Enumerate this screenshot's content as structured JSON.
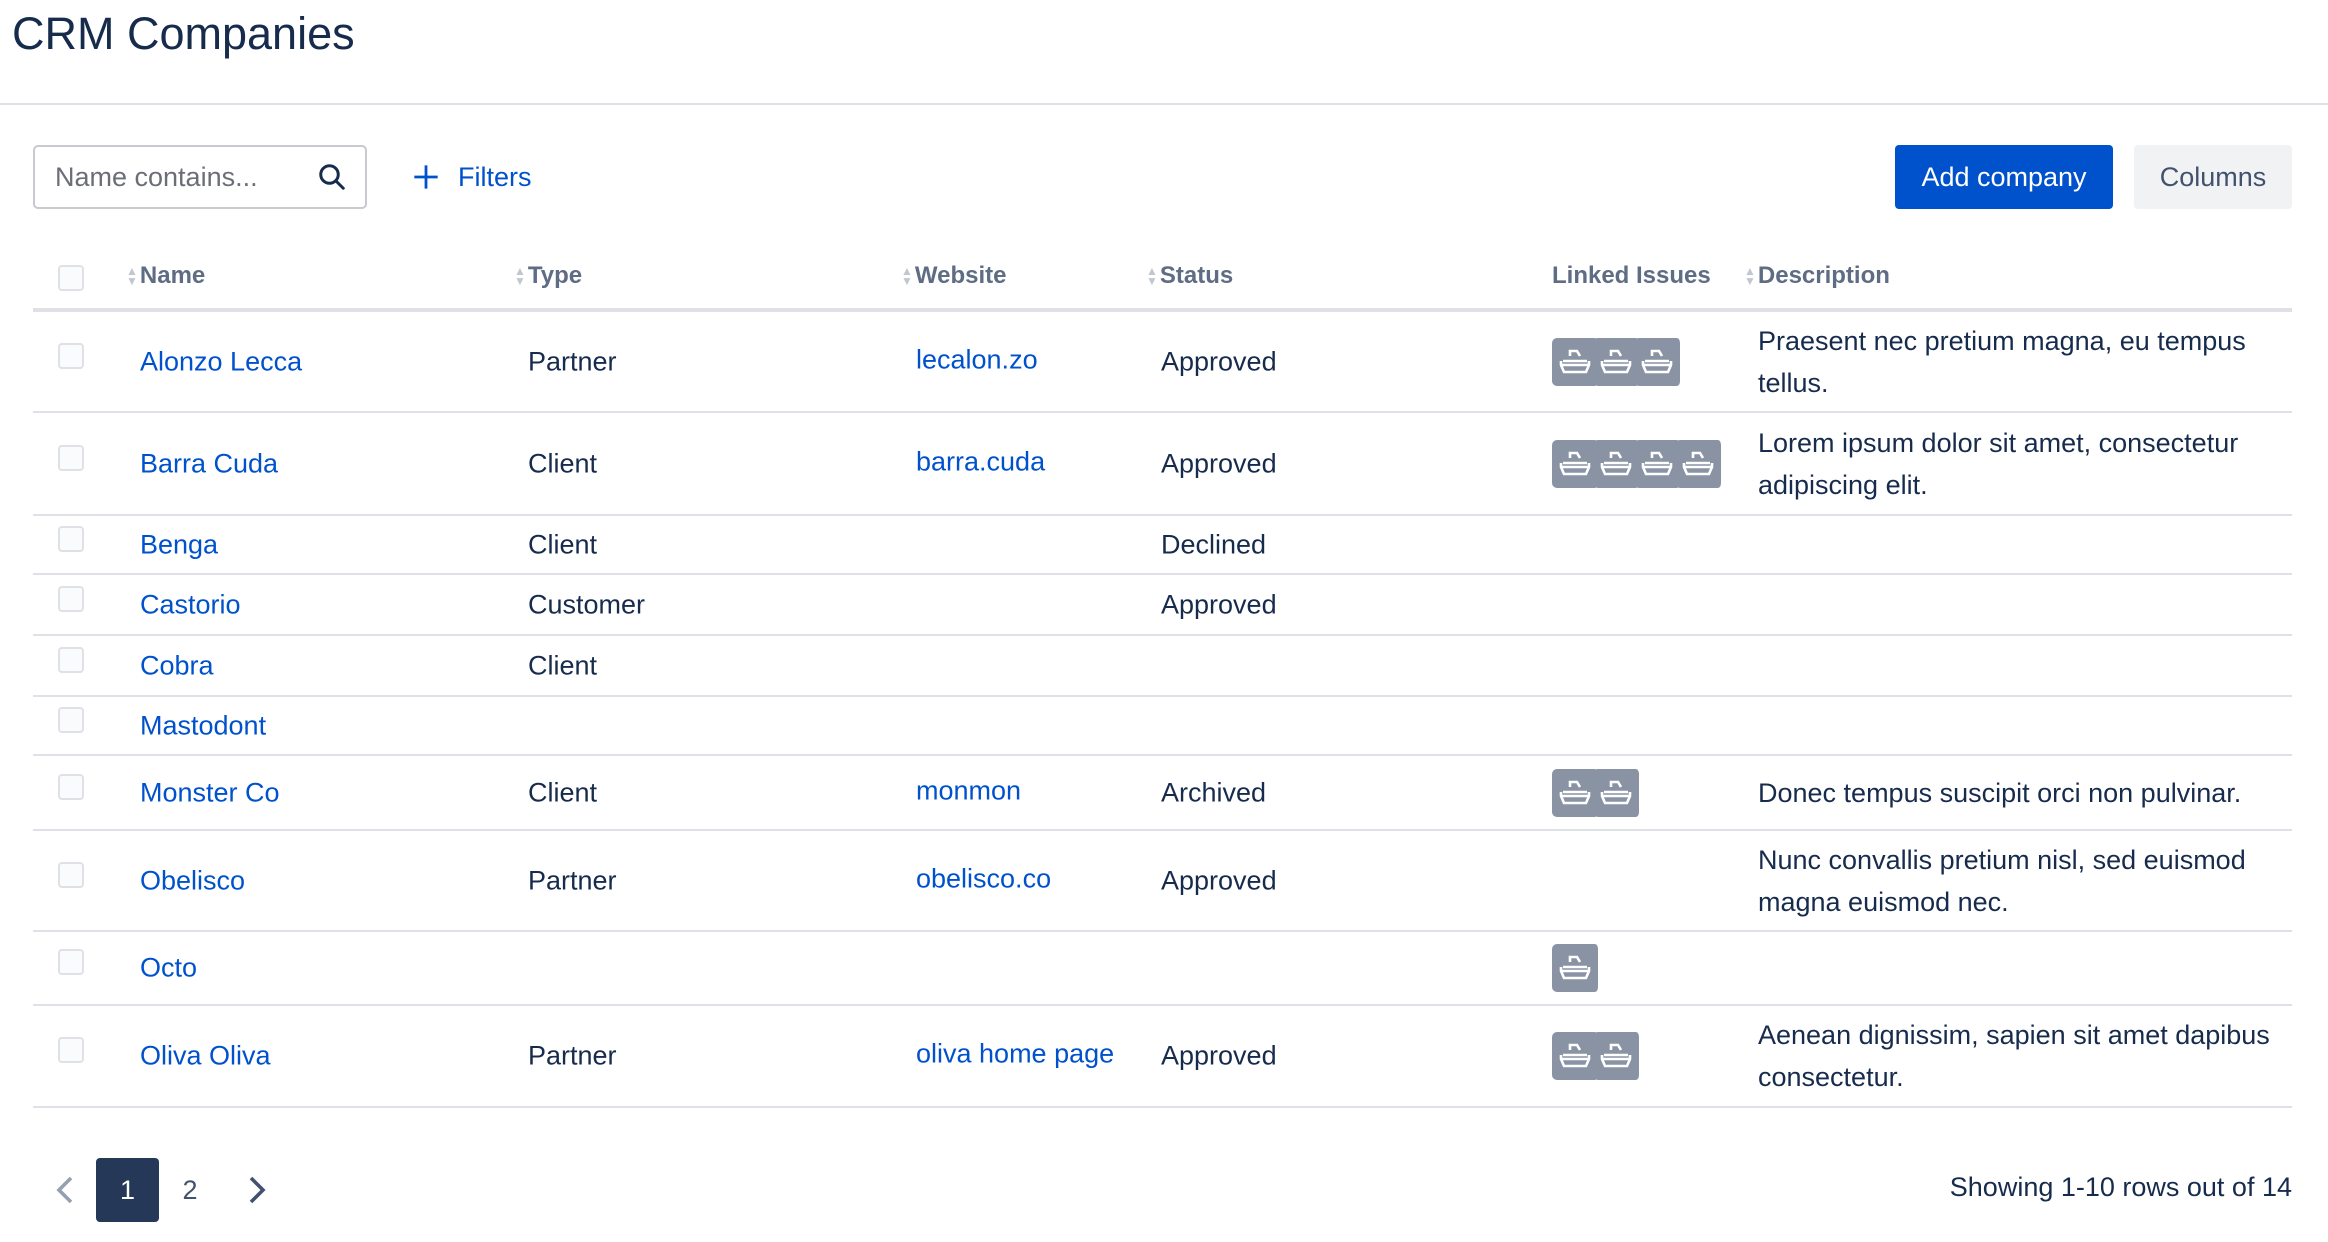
{
  "page": {
    "title": "CRM Companies"
  },
  "toolbar": {
    "search_placeholder": "Name contains...",
    "filters_label": "Filters",
    "add_label": "Add company",
    "columns_label": "Columns"
  },
  "table": {
    "headers": {
      "name": "Name",
      "type": "Type",
      "website": "Website",
      "status": "Status",
      "linked": "Linked Issues",
      "description": "Description"
    },
    "rows": [
      {
        "name": "Alonzo Lecca",
        "type": "Partner",
        "website": "lecalon.zo",
        "status": "Approved",
        "issues": 3,
        "description": "Praesent nec pretium magna, eu tempus tellus."
      },
      {
        "name": "Barra Cuda",
        "type": "Client",
        "website": "barra.cuda",
        "status": "Approved",
        "issues": 4,
        "description": "Lorem ipsum dolor sit amet, consectetur adipiscing elit."
      },
      {
        "name": "Benga",
        "type": "Client",
        "website": "",
        "status": "Declined",
        "issues": 0,
        "description": ""
      },
      {
        "name": "Castorio",
        "type": "Customer",
        "website": "",
        "status": "Approved",
        "issues": 0,
        "description": ""
      },
      {
        "name": "Cobra",
        "type": "Client",
        "website": "",
        "status": "",
        "issues": 0,
        "description": ""
      },
      {
        "name": "Mastodont",
        "type": "",
        "website": "",
        "status": "",
        "issues": 0,
        "description": ""
      },
      {
        "name": "Monster Co",
        "type": "Client",
        "website": "monmon",
        "status": "Archived",
        "issues": 2,
        "description": "Donec tempus suscipit orci non pulvinar."
      },
      {
        "name": "Obelisco",
        "type": "Partner",
        "website": "obelisco.co",
        "status": "Approved",
        "issues": 0,
        "description": "Nunc convallis pretium nisl, sed euismod magna euismod nec."
      },
      {
        "name": "Octo",
        "type": "",
        "website": "",
        "status": "",
        "issues": 1,
        "description": ""
      },
      {
        "name": "Oliva Oliva",
        "type": "Partner",
        "website": "oliva home page",
        "status": "Approved",
        "issues": 2,
        "description": "Aenean dignissim, sapien sit amet dapibus consectetur."
      }
    ]
  },
  "pagination": {
    "pages": [
      "1",
      "2"
    ],
    "current": "1",
    "summary": "Showing 1-10 rows out of 14"
  },
  "icons": {
    "issue": "ship-icon",
    "search": "search-icon",
    "add": "plus-icon"
  },
  "colors": {
    "primary": "#0052cc",
    "icon_bg": "#8993a4",
    "active_page": "#253858"
  }
}
